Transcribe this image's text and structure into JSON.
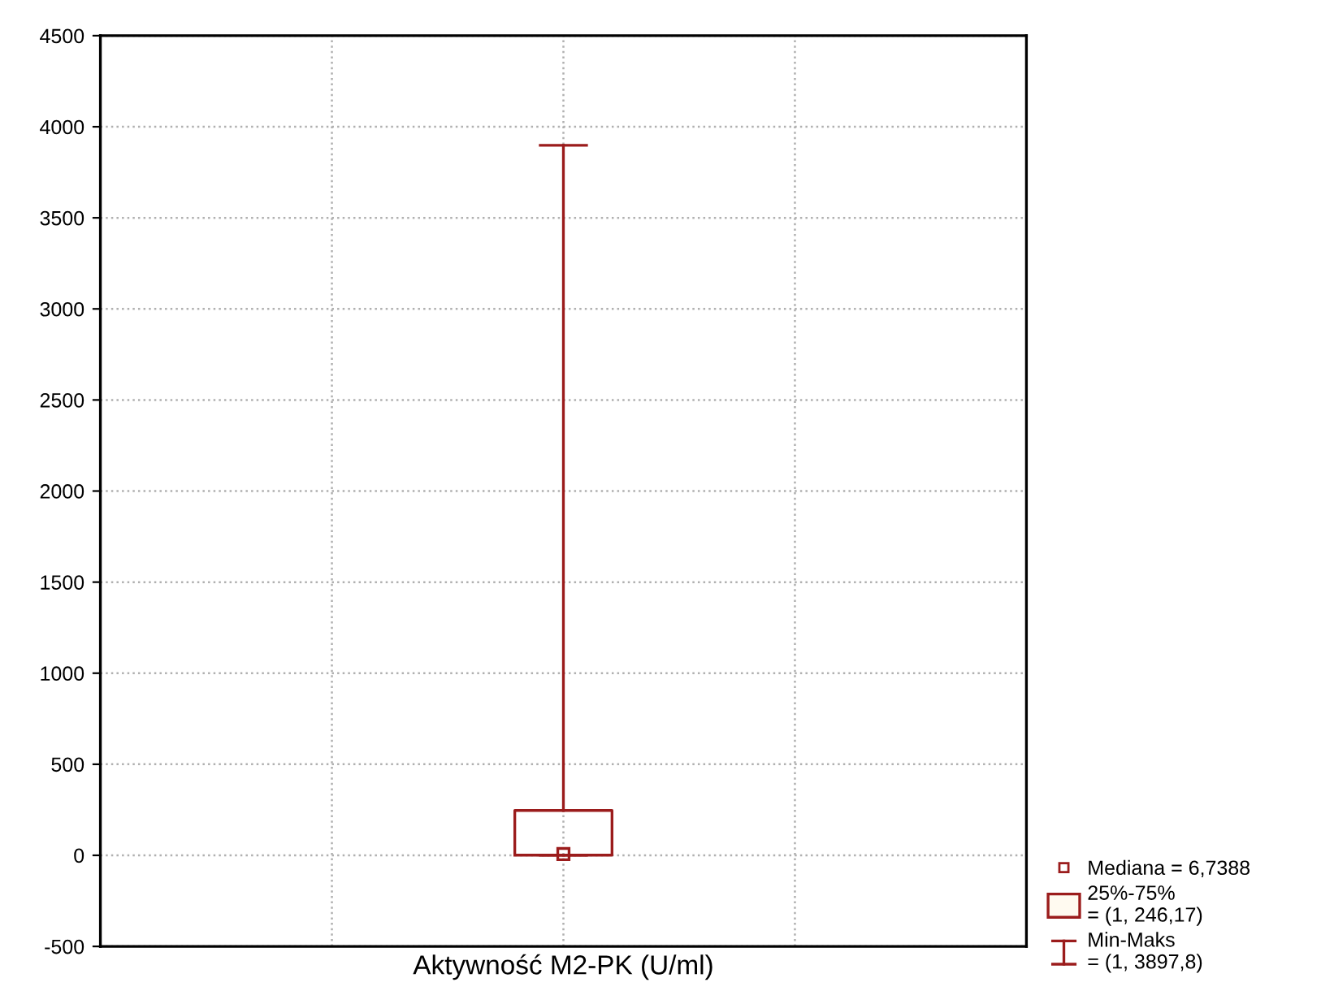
{
  "chart_data": {
    "type": "box",
    "categories": [
      "Aktywność M2-PK (U/ml)"
    ],
    "boxes": [
      {
        "low": 1,
        "q1": 1,
        "q3": 246.17,
        "high": 3897.8
      }
    ],
    "series": [
      {
        "type": "scatter",
        "x": [
          "Aktywność M2-PK (U/ml)"
        ],
        "values": [
          6.7388
        ],
        "marker": "square",
        "color": "#9b1c1c"
      }
    ],
    "color": "#9b1c1c",
    "ylim": [
      -500,
      4500
    ],
    "yticks": [
      -500,
      0,
      500,
      1000,
      1500,
      2000,
      2500,
      3000,
      3500,
      4000,
      4500
    ],
    "grid": true,
    "annotations": [
      "Mediana = 6,7388",
      "25%-75%\n= (1, 246,17)",
      "Min-Maks\n= (1, 3897,8)"
    ]
  }
}
